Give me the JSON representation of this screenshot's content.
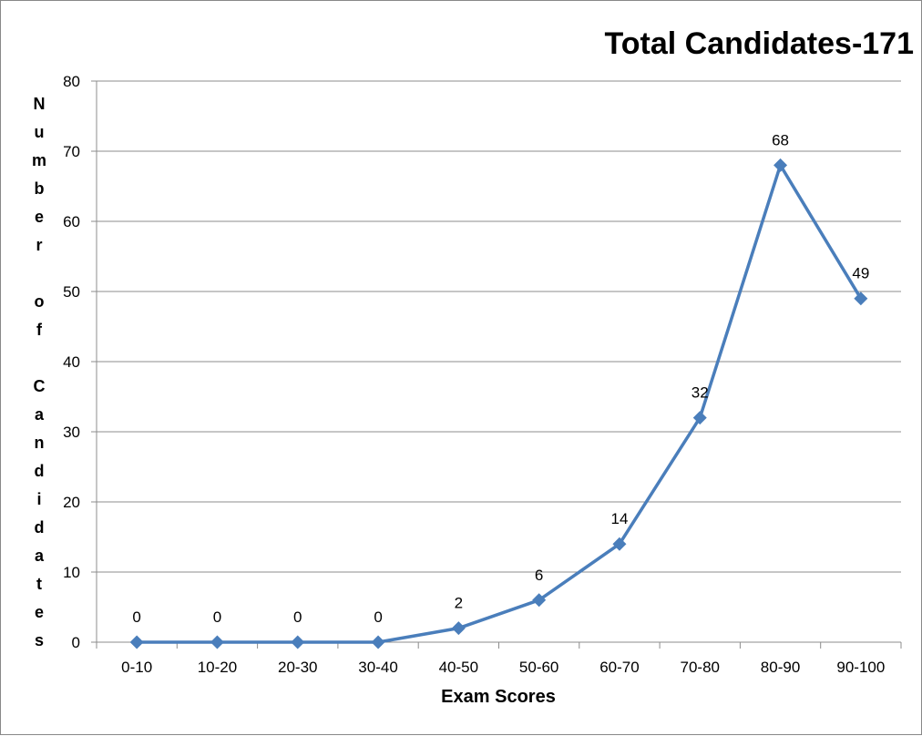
{
  "chart_data": {
    "type": "line",
    "title": "Total Candidates-171",
    "xlabel": "Exam Scores",
    "ylabel": "Number of Candidates",
    "categories": [
      "0-10",
      "10-20",
      "20-30",
      "30-40",
      "40-50",
      "50-60",
      "60-70",
      "70-80",
      "80-90",
      "90-100"
    ],
    "series": [
      {
        "values": [
          0,
          0,
          0,
          0,
          2,
          6,
          14,
          32,
          68,
          49
        ],
        "color": "#4A7EBB"
      }
    ],
    "ylim": [
      0,
      80
    ],
    "yticks": [
      "0",
      "10",
      "20",
      "30",
      "40",
      "50",
      "60",
      "70",
      "80"
    ],
    "grid": true,
    "legend": "none",
    "data_labels": true,
    "marker": "diamond"
  }
}
